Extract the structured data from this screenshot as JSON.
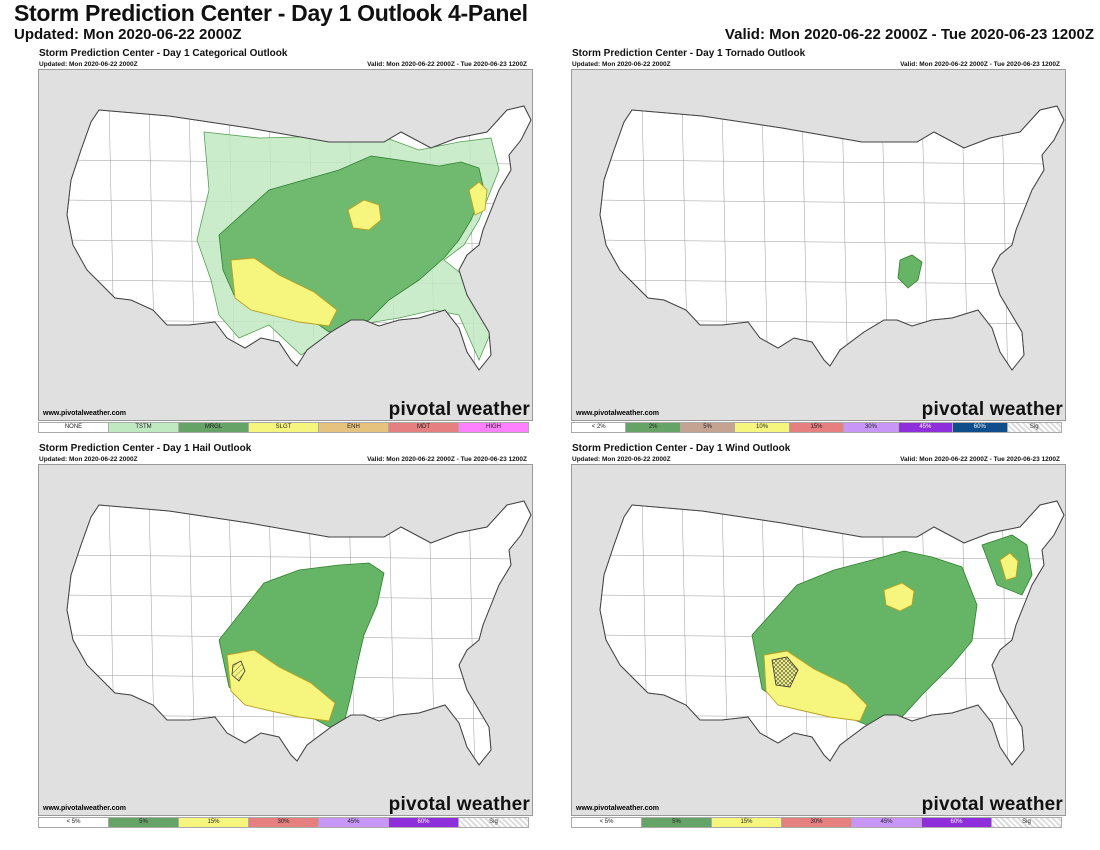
{
  "header": {
    "title": "Storm Prediction Center - Day 1 Outlook 4-Panel",
    "updated": "Updated: Mon 2020-06-22 2000Z",
    "valid": "Valid: Mon 2020-06-22 2000Z - Tue 2020-06-23 1200Z"
  },
  "panels": [
    {
      "title": "Storm Prediction Center - Day 1 Categorical Outlook",
      "updated": "Updated: Mon 2020-06-22 2000Z",
      "valid": "Valid: Mon 2020-06-22 2000Z - Tue 2020-06-23 1200Z",
      "credit": "www.pivotalweather.com",
      "brand": "pivotal weather",
      "legend": [
        {
          "label": "NONE",
          "color": "#ffffff"
        },
        {
          "label": "TSTM",
          "color": "#c1e9c1"
        },
        {
          "label": "MRGL",
          "color": "#66a366"
        },
        {
          "label": "SLGT",
          "color": "#f6f67f"
        },
        {
          "label": "ENH",
          "color": "#e6c27f"
        },
        {
          "label": "MDT",
          "color": "#e67f7f"
        },
        {
          "label": "HIGH",
          "color": "#ff80ff"
        }
      ]
    },
    {
      "title": "Storm Prediction Center - Day 1 Tornado Outlook",
      "updated": "Updated: Mon 2020-06-22 2000Z",
      "valid": "Valid: Mon 2020-06-22 2000Z - Tue 2020-06-23 1200Z",
      "credit": "www.pivotalweather.com",
      "brand": "pivotal weather",
      "legend": [
        {
          "label": "< 2%",
          "color": "#ffffff"
        },
        {
          "label": "2%",
          "color": "#66a366"
        },
        {
          "label": "5%",
          "color": "#c5a393"
        },
        {
          "label": "10%",
          "color": "#f6f67f"
        },
        {
          "label": "15%",
          "color": "#e67f7f"
        },
        {
          "label": "30%",
          "color": "#c896f7"
        },
        {
          "label": "45%",
          "color": "#8f2fdb"
        },
        {
          "label": "60%",
          "color": "#104e8b"
        },
        {
          "label": "Sig",
          "color": "#d8d8d8"
        }
      ]
    },
    {
      "title": "Storm Prediction Center - Day 1 Hail Outlook",
      "updated": "Updated: Mon 2020-06-22 2000Z",
      "valid": "Valid: Mon 2020-06-22 2000Z - Tue 2020-06-23 1200Z",
      "credit": "www.pivotalweather.com",
      "brand": "pivotal weather",
      "legend": [
        {
          "label": "< 5%",
          "color": "#ffffff"
        },
        {
          "label": "5%",
          "color": "#66a366"
        },
        {
          "label": "15%",
          "color": "#f6f67f"
        },
        {
          "label": "30%",
          "color": "#e67f7f"
        },
        {
          "label": "45%",
          "color": "#c896f7"
        },
        {
          "label": "60%",
          "color": "#8f2fdb"
        },
        {
          "label": "Sig",
          "color": "#d8d8d8"
        }
      ]
    },
    {
      "title": "Storm Prediction Center - Day 1 Wind Outlook",
      "updated": "Updated: Mon 2020-06-22 2000Z",
      "valid": "Valid: Mon 2020-06-22 2000Z - Tue 2020-06-23 1200Z",
      "credit": "www.pivotalweather.com",
      "brand": "pivotal weather",
      "legend": [
        {
          "label": "< 5%",
          "color": "#ffffff"
        },
        {
          "label": "5%",
          "color": "#66a366"
        },
        {
          "label": "15%",
          "color": "#f6f67f"
        },
        {
          "label": "30%",
          "color": "#e67f7f"
        },
        {
          "label": "45%",
          "color": "#c896f7"
        },
        {
          "label": "60%",
          "color": "#8f2fdb"
        },
        {
          "label": "Sig",
          "color": "#d8d8d8"
        }
      ]
    }
  ]
}
